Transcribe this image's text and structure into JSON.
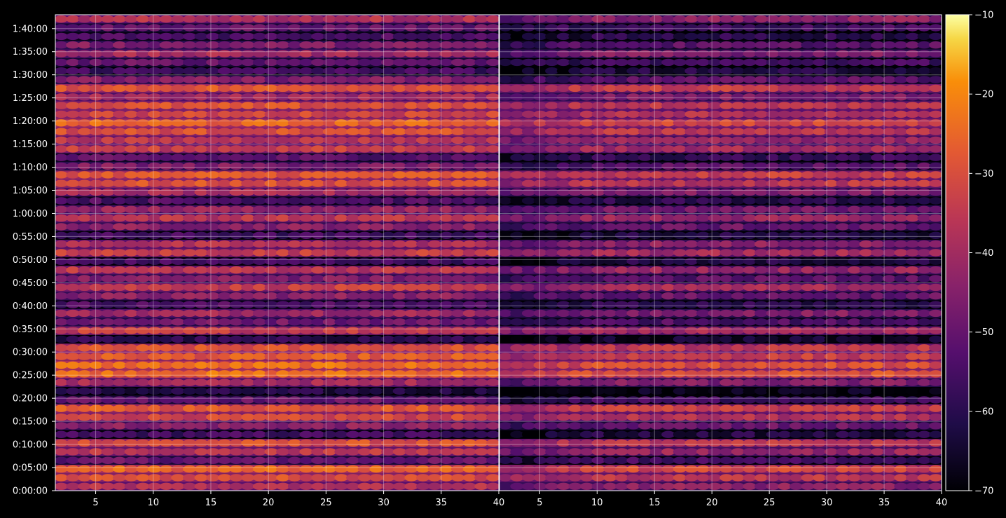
{
  "chart_data": {
    "type": "heatmap",
    "title": "",
    "xlabel": "",
    "ylabel": "",
    "panels": [
      {
        "name": "",
        "xlim": [
          1.5,
          40
        ],
        "x_ticks": [
          "5",
          "10",
          "15",
          "20",
          "25",
          "30",
          "35",
          "40"
        ]
      },
      {
        "name": "",
        "xlim": [
          1.5,
          40
        ],
        "x_ticks": [
          "5",
          "10",
          "15",
          "20",
          "25",
          "30",
          "35",
          "40"
        ]
      }
    ],
    "y_ticks": [
      "0:00:00",
      "0:05:00",
      "0:10:00",
      "0:15:00",
      "0:20:00",
      "0:25:00",
      "0:30:00",
      "0:35:00",
      "0:40:00",
      "0:45:00",
      "0:50:00",
      "0:55:00",
      "1:00:00",
      "1:05:00",
      "1:10:00",
      "1:15:00",
      "1:20:00",
      "1:25:00",
      "1:30:00",
      "1:35:00",
      "1:40:00"
    ],
    "ylim_seconds": [
      0,
      6180
    ],
    "colorbar": {
      "colormap": "inferno",
      "range": [
        -70,
        -10
      ],
      "ticks": [
        "−10",
        "−20",
        "−30",
        "−40",
        "−50",
        "−60",
        "−70"
      ]
    },
    "grid": true,
    "approx_row_levels_dB": {
      "note_free": true,
      "left_panel": [
        -38,
        -30,
        -26,
        -50,
        -36,
        -30,
        -56,
        -44,
        -32,
        -28,
        -50,
        -62,
        -40,
        -24,
        -24,
        -28,
        -30,
        -60,
        -34,
        -48,
        -40,
        -54,
        -44,
        -34,
        -46,
        -36,
        -56,
        -34,
        -38,
        -56,
        -44,
        -36,
        -42,
        -54,
        -40,
        -30,
        -28,
        -46,
        -52,
        -34,
        -36,
        -30,
        -26,
        -32,
        -30,
        -40,
        -28,
        -46,
        -56,
        -50,
        -40,
        -46,
        -54,
        -50,
        -38
      ],
      "right_panel_offset": -6
    }
  }
}
